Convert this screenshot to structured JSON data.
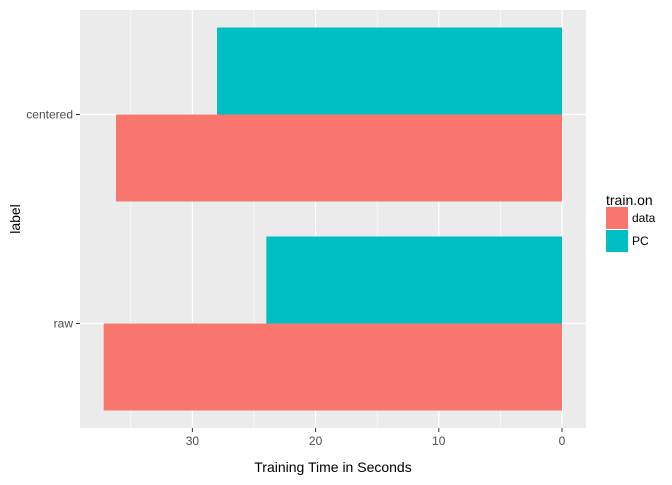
{
  "chart_data": {
    "type": "bar",
    "orientation": "horizontal",
    "x_reversed": true,
    "categories": [
      "raw",
      "centered"
    ],
    "series": [
      {
        "name": "data",
        "color": "#F8766D",
        "values": [
          37.2,
          36.2
        ]
      },
      {
        "name": "PC",
        "color": "#00BFC4",
        "values": [
          24.0,
          28.0
        ]
      }
    ],
    "xlabel": "Training Time in Seconds",
    "ylabel": "label",
    "xlim": [
      0,
      39
    ],
    "x_ticks": [
      0,
      10,
      20,
      30
    ],
    "grid": true,
    "legend": {
      "title": "train.on",
      "position": "right"
    },
    "panel_background": "#EBEBEB",
    "grid_color": "#FFFFFF"
  }
}
